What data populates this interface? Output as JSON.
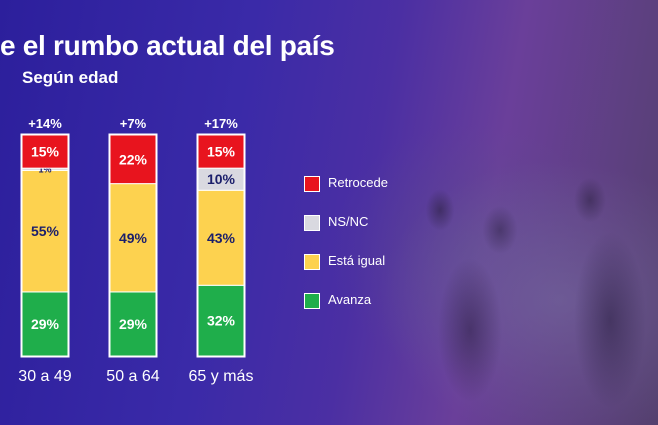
{
  "title": "e el rumbo actual del país",
  "subtitle": "Según edad",
  "colors": {
    "retrocede": "#e8141e",
    "nsnc": "#d9d9e0",
    "esta_igual": "#fdd24f",
    "avanza": "#1fae4b",
    "label_dark": "#1b1f6b",
    "label_light": "#ffffff"
  },
  "legend": [
    {
      "label": "Retrocede",
      "color": "#e8141e"
    },
    {
      "label": "NS/NC",
      "color": "#d9d9e0"
    },
    {
      "label": "Está igual",
      "color": "#fdd24f"
    },
    {
      "label": "Avanza",
      "color": "#1fae4b"
    }
  ],
  "chart_data": {
    "type": "bar",
    "stacked": true,
    "percent": true,
    "categories": [
      "30 a 49",
      "50 a 64",
      "65 y más"
    ],
    "net_labels": [
      "+14%",
      "+7%",
      "+17%"
    ],
    "series": [
      {
        "name": "Avanza",
        "values": [
          29,
          29,
          32
        ],
        "labels": [
          "29%",
          "29%",
          "32%"
        ]
      },
      {
        "name": "Está igual",
        "values": [
          55,
          49,
          43
        ],
        "labels": [
          "55%",
          "49%",
          "43%"
        ]
      },
      {
        "name": "NS/NC",
        "values": [
          1,
          0,
          10
        ],
        "labels": [
          "1%",
          "",
          "10%"
        ]
      },
      {
        "name": "Retrocede",
        "values": [
          15,
          22,
          15
        ],
        "labels": [
          "15%",
          "22%",
          "15%"
        ]
      }
    ],
    "ylim": [
      0,
      100
    ],
    "legend_position": "right"
  }
}
